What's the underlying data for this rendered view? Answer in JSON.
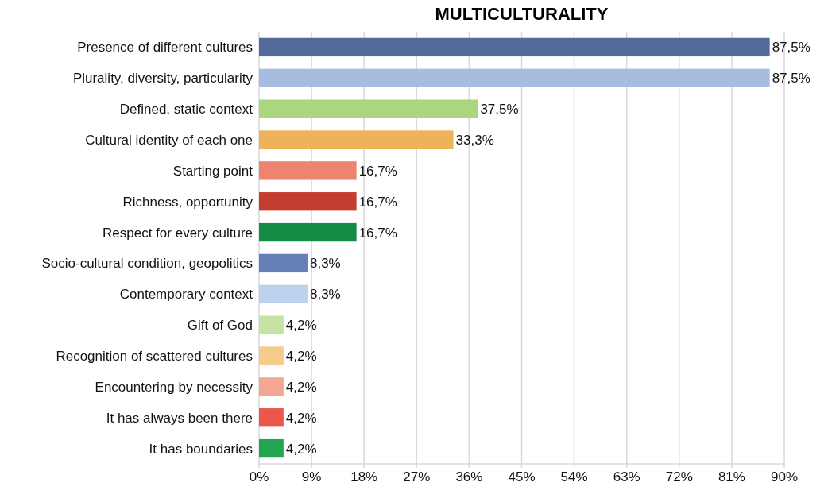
{
  "chart_data": {
    "type": "bar",
    "orientation": "horizontal",
    "title": "MULTICULTURALITY",
    "categories": [
      "Presence of different cultures",
      "Plurality, diversity, particularity",
      "Defined, static context",
      "Cultural identity of each one",
      "Starting point",
      "Richness, opportunity",
      "Respect for every culture",
      "Socio-cultural condition, geopolitics",
      "Contemporary context",
      "Gift of God",
      "Recognition of scattered cultures",
      "Encountering by necessity",
      "It has always been there",
      "It has boundaries"
    ],
    "values": [
      87.5,
      87.5,
      37.5,
      33.3,
      16.7,
      16.7,
      16.7,
      8.3,
      8.3,
      4.2,
      4.2,
      4.2,
      4.2,
      4.2
    ],
    "value_labels": [
      "87,5%",
      "87,5%",
      "37,5%",
      "33,3%",
      "16,7%",
      "16,7%",
      "16,7%",
      "8,3%",
      "8,3%",
      "4,2%",
      "4,2%",
      "4,2%",
      "4,2%",
      "4,2%"
    ],
    "colors": [
      "#516a98",
      "#a6bde0",
      "#acd57f",
      "#eeb25a",
      "#ee8470",
      "#c43d31",
      "#138c45",
      "#637fb5",
      "#bcd1ec",
      "#c7e3a4",
      "#f6cb8b",
      "#f4a593",
      "#e9584a",
      "#22a653"
    ],
    "xlim": [
      0,
      90
    ],
    "xticks": [
      {
        "value": 0,
        "label": "0%"
      },
      {
        "value": 9,
        "label": "9%"
      },
      {
        "value": 18,
        "label": "18%"
      },
      {
        "value": 27,
        "label": "27%"
      },
      {
        "value": 36,
        "label": "36%"
      },
      {
        "value": 45,
        "label": "45%"
      },
      {
        "value": 54,
        "label": "54%"
      },
      {
        "value": 63,
        "label": "63%"
      },
      {
        "value": 72,
        "label": "72%"
      },
      {
        "value": 81,
        "label": "81%"
      },
      {
        "value": 90,
        "label": "90%"
      }
    ],
    "grid": "x"
  }
}
